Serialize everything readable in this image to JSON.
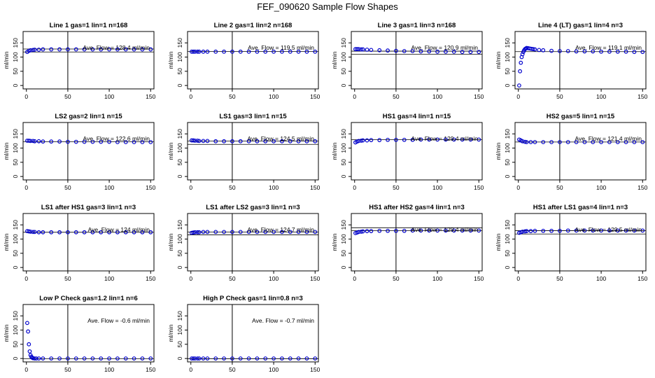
{
  "figure": {
    "title": "FEF_090620  Sample Flow Shapes"
  },
  "colors": {
    "points": "#0000cc",
    "axes": "#000000",
    "background": "#ffffff"
  },
  "chart_data": [
    {
      "type": "scatter",
      "title": "Line 1 gas=1 lin=1 n=168",
      "ylabel": "ml/min",
      "annotation": "Ave. Flow =  128.4  ml/min",
      "xticks": [
        0,
        50,
        100,
        150
      ],
      "yticks": [
        0,
        50,
        100,
        150
      ],
      "xlim": [
        -4,
        154
      ],
      "ylim": [
        -12,
        190
      ],
      "vline": 50,
      "hlines": [
        128.4,
        118
      ],
      "series": [
        {
          "x": [
            1,
            3,
            5,
            8,
            10,
            15,
            20,
            30,
            40,
            50,
            60,
            70,
            80,
            90,
            100,
            110,
            120,
            130,
            140,
            150
          ],
          "y": [
            118,
            122,
            124,
            125,
            126,
            126,
            127,
            127,
            127,
            127,
            127,
            127,
            127,
            127,
            127,
            127,
            127,
            127,
            127,
            127
          ]
        }
      ]
    },
    {
      "type": "scatter",
      "title": "Line 2 gas=1 lin=2 n=168",
      "ylabel": "ml/min",
      "annotation": "Ave. Flow =  119.5  ml/min",
      "xticks": [
        0,
        50,
        100,
        150
      ],
      "yticks": [
        0,
        50,
        100,
        150
      ],
      "xlim": [
        -4,
        154
      ],
      "ylim": [
        -12,
        190
      ],
      "vline": 50,
      "hlines": [
        119.5
      ],
      "series": [
        {
          "x": [
            1,
            3,
            5,
            8,
            10,
            15,
            20,
            30,
            40,
            50,
            60,
            70,
            80,
            90,
            100,
            110,
            120,
            130,
            140,
            150
          ],
          "y": [
            119,
            119,
            119,
            119,
            119,
            119,
            119,
            119,
            119,
            119,
            119,
            119,
            119,
            119,
            119,
            119,
            119,
            119,
            119,
            119
          ]
        }
      ]
    },
    {
      "type": "scatter",
      "title": "Line 3 gas=1 lin=3 n=168",
      "ylabel": "ml/min",
      "annotation": "Ave. Flow =  120.9  ml/min",
      "xticks": [
        0,
        50,
        100,
        150
      ],
      "yticks": [
        0,
        50,
        100,
        150
      ],
      "xlim": [
        -4,
        154
      ],
      "ylim": [
        -12,
        190
      ],
      "vline": 50,
      "hlines": [
        120.9,
        110
      ],
      "series": [
        {
          "x": [
            1,
            3,
            5,
            8,
            10,
            15,
            20,
            30,
            40,
            50,
            60,
            70,
            80,
            90,
            100,
            110,
            120,
            130,
            140,
            150
          ],
          "y": [
            128,
            128,
            128,
            127,
            127,
            126,
            125,
            124,
            123,
            122,
            121,
            121,
            120,
            120,
            119,
            119,
            119,
            118,
            118,
            118
          ]
        }
      ]
    },
    {
      "type": "scatter",
      "title": "Line 4 (LT) gas=1 lin=4 n=3",
      "ylabel": "ml/min",
      "annotation": "Ave. Flow =  119.1  ml/min",
      "xticks": [
        0,
        50,
        100,
        150
      ],
      "yticks": [
        0,
        50,
        100,
        150
      ],
      "xlim": [
        -4,
        154
      ],
      "ylim": [
        -12,
        190
      ],
      "vline": 50,
      "hlines": [
        119.1
      ],
      "series": [
        {
          "x": [
            1,
            2,
            3,
            4,
            5,
            6,
            7,
            8,
            9,
            10,
            12,
            14,
            16,
            18,
            20,
            25,
            30,
            40,
            50,
            60,
            70,
            80,
            90,
            100,
            110,
            120,
            130,
            140,
            150
          ],
          "y": [
            0,
            50,
            80,
            100,
            110,
            118,
            124,
            128,
            130,
            132,
            131,
            130,
            129,
            128,
            127,
            125,
            124,
            122,
            121,
            121,
            120,
            120,
            120,
            119,
            119,
            119,
            119,
            118,
            118
          ]
        }
      ]
    },
    {
      "type": "scatter",
      "title": "LS2 gas=2 lin=1 n=15",
      "ylabel": "ml/min",
      "annotation": "Ave. Flow =  122.6  ml/min",
      "xticks": [
        0,
        50,
        100,
        150
      ],
      "yticks": [
        0,
        50,
        100,
        150
      ],
      "xlim": [
        -4,
        154
      ],
      "ylim": [
        -12,
        190
      ],
      "vline": 50,
      "hlines": [
        122.6
      ],
      "series": [
        {
          "x": [
            1,
            3,
            5,
            8,
            10,
            15,
            20,
            30,
            40,
            50,
            60,
            70,
            80,
            90,
            100,
            110,
            120,
            130,
            140,
            150
          ],
          "y": [
            126,
            126,
            125,
            125,
            124,
            124,
            123,
            123,
            123,
            122,
            122,
            122,
            122,
            122,
            122,
            121,
            121,
            121,
            121,
            121
          ]
        }
      ]
    },
    {
      "type": "scatter",
      "title": "LS1 gas=3 lin=1 n=15",
      "ylabel": "ml/min",
      "annotation": "Ave. Flow =  124.5  ml/min",
      "xticks": [
        0,
        50,
        100,
        150
      ],
      "yticks": [
        0,
        50,
        100,
        150
      ],
      "xlim": [
        -4,
        154
      ],
      "ylim": [
        -12,
        190
      ],
      "vline": 50,
      "hlines": [
        124.5,
        113
      ],
      "series": [
        {
          "x": [
            1,
            3,
            5,
            8,
            10,
            15,
            20,
            30,
            40,
            50,
            60,
            70,
            80,
            90,
            100,
            110,
            120,
            130,
            140,
            150
          ],
          "y": [
            127,
            127,
            126,
            126,
            125,
            125,
            125,
            124,
            124,
            124,
            124,
            124,
            124,
            124,
            124,
            124,
            124,
            124,
            124,
            124
          ]
        }
      ]
    },
    {
      "type": "scatter",
      "title": "HS1 gas=4 lin=1 n=15",
      "ylabel": "ml/min",
      "annotation": "Ave. Flow =  129.4  ml/min",
      "xticks": [
        0,
        50,
        100,
        150
      ],
      "yticks": [
        0,
        50,
        100,
        150
      ],
      "xlim": [
        -4,
        154
      ],
      "ylim": [
        -12,
        190
      ],
      "vline": 50,
      "hlines": [
        129.4
      ],
      "series": [
        {
          "x": [
            1,
            3,
            5,
            8,
            10,
            15,
            20,
            30,
            40,
            50,
            60,
            70,
            80,
            90,
            100,
            110,
            120,
            130,
            140,
            150
          ],
          "y": [
            120,
            123,
            125,
            126,
            127,
            127,
            128,
            128,
            129,
            129,
            129,
            129,
            130,
            130,
            130,
            130,
            130,
            130,
            130,
            130
          ]
        }
      ]
    },
    {
      "type": "scatter",
      "title": "HS2 gas=5 lin=1 n=15",
      "ylabel": "ml/min",
      "annotation": "Ave. Flow =  121.4  ml/min",
      "xticks": [
        0,
        50,
        100,
        150
      ],
      "yticks": [
        0,
        50,
        100,
        150
      ],
      "xlim": [
        -4,
        154
      ],
      "ylim": [
        -12,
        190
      ],
      "vline": 50,
      "hlines": [
        121.4
      ],
      "series": [
        {
          "x": [
            1,
            3,
            5,
            8,
            10,
            15,
            20,
            30,
            40,
            50,
            60,
            70,
            80,
            90,
            100,
            110,
            120,
            130,
            140,
            150
          ],
          "y": [
            130,
            127,
            124,
            122,
            121,
            121,
            121,
            121,
            121,
            121,
            121,
            121,
            121,
            121,
            121,
            121,
            121,
            121,
            121,
            121
          ]
        }
      ]
    },
    {
      "type": "scatter",
      "title": "LS1 after HS1 gas=3 lin=1 n=3",
      "ylabel": "ml/min",
      "annotation": "Ave. Flow =  124  ml/min",
      "xticks": [
        0,
        50,
        100,
        150
      ],
      "yticks": [
        0,
        50,
        100,
        150
      ],
      "xlim": [
        -4,
        154
      ],
      "ylim": [
        -12,
        190
      ],
      "vline": 50,
      "hlines": [
        124
      ],
      "series": [
        {
          "x": [
            1,
            3,
            5,
            8,
            10,
            15,
            20,
            30,
            40,
            50,
            60,
            70,
            80,
            90,
            100,
            110,
            120,
            130,
            140,
            150
          ],
          "y": [
            128,
            127,
            126,
            125,
            125,
            124,
            124,
            124,
            124,
            124,
            124,
            124,
            124,
            124,
            124,
            124,
            124,
            124,
            124,
            124
          ]
        }
      ]
    },
    {
      "type": "scatter",
      "title": "LS1 after LS2 gas=3 lin=1 n=3",
      "ylabel": "ml/min",
      "annotation": "Ave. Flow =  124.7  ml/min",
      "xticks": [
        0,
        50,
        100,
        150
      ],
      "yticks": [
        0,
        50,
        100,
        150
      ],
      "xlim": [
        -4,
        154
      ],
      "ylim": [
        -12,
        190
      ],
      "vline": 50,
      "hlines": [
        124.7,
        115
      ],
      "series": [
        {
          "x": [
            1,
            3,
            5,
            8,
            10,
            15,
            20,
            30,
            40,
            50,
            60,
            70,
            80,
            90,
            100,
            110,
            120,
            130,
            140,
            150
          ],
          "y": [
            122,
            123,
            124,
            124,
            124,
            125,
            125,
            125,
            125,
            125,
            125,
            125,
            125,
            125,
            125,
            125,
            125,
            125,
            125,
            125
          ]
        }
      ]
    },
    {
      "type": "scatter",
      "title": "HS1 after HS2 gas=4 lin=1 n=3",
      "ylabel": "ml/min",
      "annotation": "Ave. Flow =  129.4  ml/min",
      "xticks": [
        0,
        50,
        100,
        150
      ],
      "yticks": [
        0,
        50,
        100,
        150
      ],
      "xlim": [
        -4,
        154
      ],
      "ylim": [
        -12,
        190
      ],
      "vline": 50,
      "hlines": [
        129.4,
        140
      ],
      "series": [
        {
          "x": [
            1,
            3,
            5,
            8,
            10,
            15,
            20,
            30,
            40,
            50,
            60,
            70,
            80,
            90,
            100,
            110,
            120,
            130,
            140,
            150
          ],
          "y": [
            121,
            123,
            125,
            126,
            127,
            128,
            128,
            129,
            129,
            129,
            129,
            130,
            130,
            130,
            130,
            130,
            130,
            130,
            130,
            130
          ]
        }
      ]
    },
    {
      "type": "scatter",
      "title": "HS1 after LS1 gas=4 lin=1 n=3",
      "ylabel": "ml/min",
      "annotation": "Ave. Flow =  129.5  ml/min",
      "xticks": [
        0,
        50,
        100,
        150
      ],
      "yticks": [
        0,
        50,
        100,
        150
      ],
      "xlim": [
        -4,
        154
      ],
      "ylim": [
        -12,
        190
      ],
      "vline": 50,
      "hlines": [
        129.5,
        118
      ],
      "series": [
        {
          "x": [
            1,
            3,
            5,
            8,
            10,
            15,
            20,
            30,
            40,
            50,
            60,
            70,
            80,
            90,
            100,
            110,
            120,
            130,
            140,
            150
          ],
          "y": [
            122,
            124,
            126,
            127,
            128,
            128,
            129,
            129,
            129,
            129,
            130,
            130,
            130,
            130,
            130,
            130,
            130,
            130,
            130,
            130
          ]
        }
      ]
    },
    {
      "type": "scatter",
      "title": "Low P Check gas=1.2 lin=1 n=6",
      "ylabel": "ml/min",
      "annotation": "Ave. Flow =  -0.6  ml/min",
      "xticks": [
        0,
        50,
        100,
        150
      ],
      "yticks": [
        0,
        50,
        100,
        150
      ],
      "xlim": [
        -4,
        154
      ],
      "ylim": [
        -12,
        190
      ],
      "vline": 50,
      "hlines": [
        -0.6
      ],
      "series": [
        {
          "x": [
            1,
            2,
            3,
            4,
            5,
            6,
            7,
            8,
            10,
            12,
            15,
            20,
            30,
            40,
            50,
            60,
            70,
            80,
            90,
            100,
            110,
            120,
            130,
            140,
            150
          ],
          "y": [
            125,
            95,
            50,
            25,
            12,
            6,
            3,
            1,
            0,
            0,
            0,
            0,
            0,
            0,
            0,
            0,
            0,
            0,
            0,
            0,
            0,
            0,
            0,
            0,
            0
          ]
        }
      ]
    },
    {
      "type": "scatter",
      "title": "High P Check gas=1 lin=0.8 n=3",
      "ylabel": "ml/min",
      "annotation": "Ave. Flow =  -0.7  ml/min",
      "xticks": [
        0,
        50,
        100,
        150
      ],
      "yticks": [
        0,
        50,
        100,
        150
      ],
      "xlim": [
        -4,
        154
      ],
      "ylim": [
        -12,
        190
      ],
      "vline": 50,
      "hlines": [
        -0.7
      ],
      "series": [
        {
          "x": [
            1,
            3,
            5,
            8,
            10,
            15,
            20,
            30,
            40,
            50,
            60,
            70,
            80,
            90,
            100,
            110,
            120,
            130,
            140,
            150
          ],
          "y": [
            0,
            0,
            0,
            0,
            0,
            0,
            0,
            0,
            0,
            0,
            0,
            0,
            0,
            0,
            0,
            0,
            0,
            0,
            0,
            0
          ]
        }
      ]
    }
  ]
}
